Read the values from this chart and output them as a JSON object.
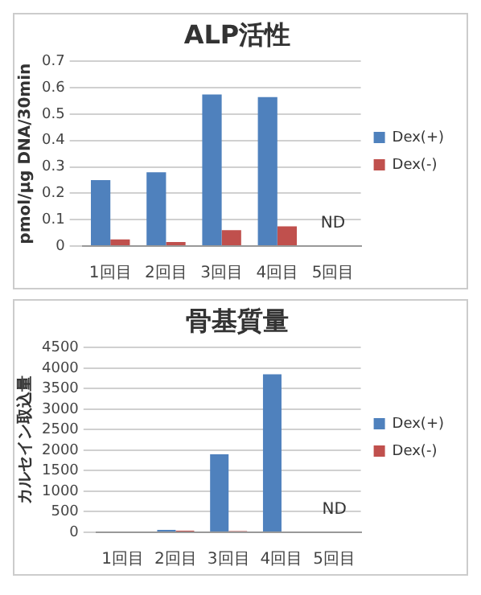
{
  "chart_data": [
    {
      "type": "bar",
      "title": "ALP活性",
      "ylabel": "pmol/μg DNA/30min",
      "categories": [
        "1回目",
        "2回目",
        "3回目",
        "4回目",
        "5回目"
      ],
      "series": [
        {
          "name": "Dex(+)",
          "color": "#4f81bd",
          "values": [
            0.25,
            0.28,
            0.575,
            0.565,
            null
          ]
        },
        {
          "name": "Dex(-)",
          "color": "#c0504d",
          "values": [
            0.025,
            0.015,
            0.06,
            0.075,
            null
          ]
        }
      ],
      "ylim": [
        0,
        0.7
      ],
      "yticks": [
        0,
        0.1,
        0.2,
        0.3,
        0.4,
        0.5,
        0.6,
        0.7
      ],
      "grid": "y",
      "legend": "right",
      "annotations": [
        "ND"
      ]
    },
    {
      "type": "bar",
      "title": "骨基質量",
      "ylabel": "カルセイン取込量",
      "categories": [
        "1回目",
        "2回目",
        "3回目",
        "4回目",
        "5回目"
      ],
      "series": [
        {
          "name": "Dex(+)",
          "color": "#4f81bd",
          "values": [
            20,
            60,
            1900,
            3850,
            null
          ]
        },
        {
          "name": "Dex(-)",
          "color": "#c0504d",
          "values": [
            20,
            40,
            30,
            20,
            null
          ]
        }
      ],
      "ylim": [
        0,
        4500
      ],
      "yticks": [
        0,
        500,
        1000,
        1500,
        2000,
        2500,
        3000,
        3500,
        4000,
        4500
      ],
      "grid": "y",
      "legend": "right",
      "annotations": [
        "ND"
      ]
    }
  ]
}
